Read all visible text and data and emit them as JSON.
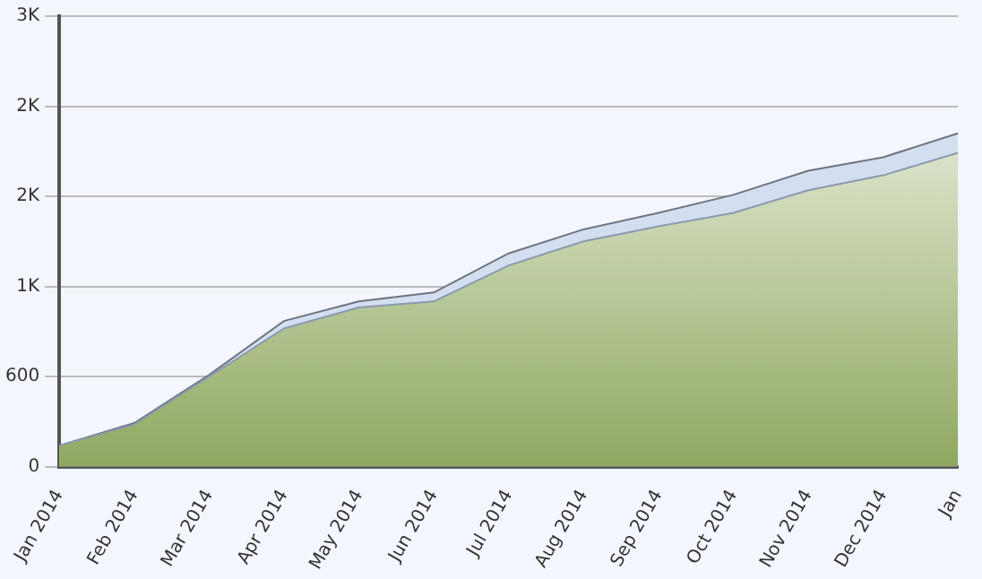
{
  "chart_data": {
    "type": "area",
    "categories": [
      "Jan 2014",
      "Feb 2014",
      "Mar 2014",
      "Apr 2014",
      "May 2014",
      "Jun 2014",
      "Jul 2014",
      "Aug 2014",
      "Sep 2014",
      "Oct 2014",
      "Nov 2014",
      "Dec 2014",
      "Jan"
    ],
    "series": [
      {
        "color": "#d3dff0",
        "values": [
          140,
          290,
          610,
          970,
          1100,
          1160,
          1420,
          1580,
          1690,
          1810,
          1970,
          2060,
          2220
        ]
      },
      {
        "color": "#8fa860",
        "values": [
          140,
          280,
          600,
          920,
          1060,
          1100,
          1340,
          1500,
          1600,
          1690,
          1840,
          1940,
          2090
        ]
      }
    ],
    "ylim": [
      0,
      3000
    ],
    "yticks": [
      0,
      600,
      {
        "value": 1200,
        "label": "1K"
      },
      {
        "value": 1800,
        "label": "2K"
      },
      {
        "value": 2400,
        "label": "2K"
      },
      {
        "value": 3000,
        "label": "3K"
      }
    ],
    "grid": "y"
  }
}
